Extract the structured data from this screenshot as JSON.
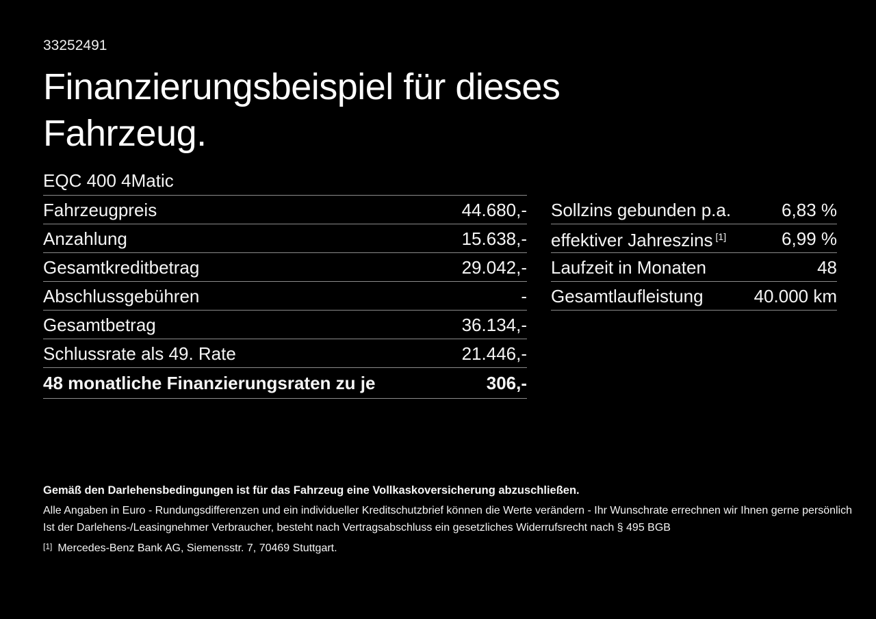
{
  "doc_number": "33252491",
  "title": "Finanzierungsbeispiel für dieses Fahrzeug.",
  "vehicle_model": "EQC 400 4Matic",
  "finance_table": {
    "rows": [
      {
        "label": "Fahrzeugpreis",
        "value": "44.680,-"
      },
      {
        "label": "Anzahlung",
        "value": "15.638,-"
      },
      {
        "label": "Gesamtkreditbetrag",
        "value": "29.042,-"
      },
      {
        "label": "Abschlussgebühren",
        "value": "-"
      },
      {
        "label": "Gesamtbetrag",
        "value": "36.134,-"
      },
      {
        "label": "Schlussrate als 49. Rate",
        "value": "21.446,-"
      },
      {
        "label": "48 monatliche Finanzierungsraten zu je",
        "value": "306,-"
      }
    ]
  },
  "conditions_table": {
    "rows": [
      {
        "label": "Sollzins gebunden p.a.",
        "value": "6,83 %"
      },
      {
        "label": "effektiver Jahreszins",
        "label_sup": "[1]",
        "value": "6,99 %"
      },
      {
        "label": "Laufzeit in Monaten",
        "value": "48"
      },
      {
        "label": "Gesamtlaufleistung",
        "value": "40.000 km"
      }
    ]
  },
  "footer": {
    "bold_note": "Gemäß den Darlehensbedingungen ist für das Fahrzeug eine Vollkaskoversicherung abzuschließen.",
    "note_line1": "Alle Angaben in Euro - Rundungsdifferenzen und ein individueller Kreditschutzbrief können die Werte verändern - Ihr Wunschrate errechnen wir Ihnen gerne persönlich",
    "note_line2": "Ist der Darlehens-/Leasingnehmer Verbraucher, besteht nach Vertragsabschluss ein gesetzliches Widerrufsrecht nach § 495 BGB",
    "footnote_marker": "[1]",
    "footnote_text": "Mercedes-Benz Bank AG, Siemensstr. 7, 70469 Stuttgart."
  },
  "colors": {
    "background": "#000000",
    "text": "#f5f5f5",
    "divider": "#8c8c8c"
  }
}
